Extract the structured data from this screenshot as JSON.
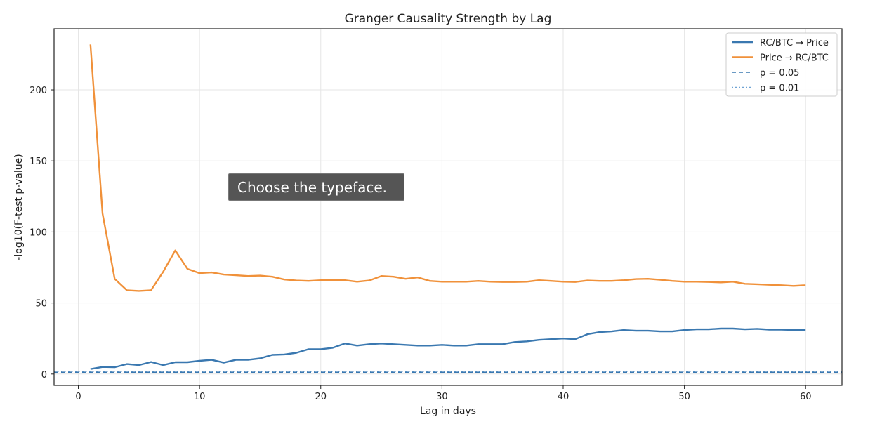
{
  "chart_data": {
    "type": "line",
    "title": "Granger Causality Strength by Lag",
    "xlabel": "Lag in days",
    "ylabel": "-log10(F-test p-value)",
    "xlim": [
      -2,
      63
    ],
    "ylim": [
      -8,
      243
    ],
    "xticks": [
      0,
      10,
      20,
      30,
      40,
      50,
      60
    ],
    "yticks": [
      0,
      50,
      100,
      150,
      200
    ],
    "grid": true,
    "legend_position": "top-right",
    "x": [
      1,
      2,
      3,
      4,
      5,
      6,
      7,
      8,
      9,
      10,
      11,
      12,
      13,
      14,
      15,
      16,
      17,
      18,
      19,
      20,
      21,
      22,
      23,
      24,
      25,
      26,
      27,
      28,
      29,
      30,
      31,
      32,
      33,
      34,
      35,
      36,
      37,
      38,
      39,
      40,
      41,
      42,
      43,
      44,
      45,
      46,
      47,
      48,
      49,
      50,
      51,
      52,
      53,
      54,
      55,
      56,
      57,
      58,
      59,
      60
    ],
    "series": [
      {
        "name": "RC/BTC → Price",
        "color": "#3a78b0",
        "style": "solid",
        "values": [
          3.5,
          5,
          4.8,
          7,
          6.3,
          8.5,
          6.3,
          8.3,
          8.3,
          9.3,
          10,
          8,
          10,
          10,
          11,
          13.5,
          13.8,
          15,
          17.5,
          17.5,
          18.5,
          21.5,
          20,
          21,
          21.5,
          21,
          20.5,
          20,
          20,
          20.5,
          20,
          20,
          21,
          21,
          21,
          22.5,
          23,
          24,
          24.5,
          25,
          24.5,
          28,
          29.5,
          30,
          31,
          30.5,
          30.5,
          30,
          30,
          31,
          31.5,
          31.5,
          32,
          32,
          31.5,
          31.8,
          31.3,
          31.3,
          31,
          31
        ]
      },
      {
        "name": "Price → RC/BTC",
        "color": "#f0913a",
        "style": "solid",
        "values": [
          232,
          113,
          67,
          59,
          58.5,
          59,
          72,
          87,
          74,
          71,
          71.5,
          70,
          69.5,
          69,
          69.3,
          68.5,
          66.5,
          65.8,
          65.5,
          66,
          66,
          66,
          65,
          65.8,
          69,
          68.5,
          67,
          68,
          65.5,
          65,
          65,
          65,
          65.5,
          65,
          64.8,
          64.8,
          65,
          66,
          65.5,
          65,
          64.8,
          65.8,
          65.5,
          65.5,
          66,
          66.8,
          67,
          66.3,
          65.5,
          65,
          65,
          64.8,
          64.5,
          65,
          63.5,
          63.2,
          62.8,
          62.5,
          62,
          62.5
        ]
      },
      {
        "name": "p = 0.05",
        "color": "#3a78b0",
        "style": "dashed",
        "hline": 1.3
      },
      {
        "name": "p = 0.01",
        "color": "#6fa3d4",
        "style": "dotted",
        "hline": 2
      }
    ]
  },
  "overlay": {
    "tooltip_text": "Choose the typeface."
  }
}
